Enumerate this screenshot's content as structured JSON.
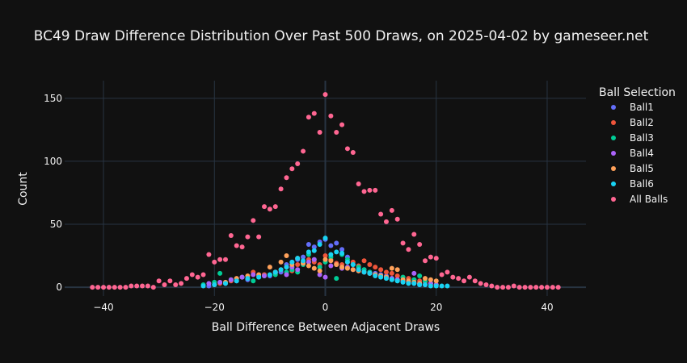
{
  "chart_data": {
    "type": "scatter",
    "title": "BC49 Draw Difference Distribution Over Past 500 Draws, on 2025-04-02 by gameseer.net",
    "xlabel": "Ball Difference Between Adjacent Draws",
    "ylabel": "Count",
    "xlim": [
      -47,
      47
    ],
    "ylim": [
      -7,
      164
    ],
    "xticks": [
      -40,
      -20,
      0,
      20,
      40
    ],
    "yticks": [
      0,
      50,
      100,
      150
    ],
    "grid": true,
    "legend": {
      "title": "Ball Selection",
      "placement": "right"
    },
    "series": [
      {
        "name": "Ball1",
        "color": "#636efa",
        "x": [
          -21,
          -18,
          -16,
          -15,
          -14,
          -12,
          -11,
          -10,
          -9,
          -8,
          -7,
          -6,
          -5,
          -4,
          -3,
          -2,
          -1,
          0,
          1,
          2,
          3,
          4,
          5,
          6,
          7,
          8,
          9,
          10,
          11,
          12,
          13,
          14,
          15,
          16,
          17
        ],
        "y": [
          1,
          3,
          5,
          8,
          6,
          9,
          10,
          9,
          11,
          12,
          18,
          20,
          22,
          24,
          34,
          32,
          36,
          38,
          33,
          35,
          30,
          24,
          18,
          16,
          14,
          12,
          11,
          10,
          9,
          7,
          6,
          5,
          4,
          3,
          2
        ]
      },
      {
        "name": "Ball2",
        "color": "#ef553b",
        "x": [
          -19,
          -17,
          -15,
          -13,
          -11,
          -9,
          -8,
          -7,
          -6,
          -5,
          -4,
          -3,
          -2,
          -1,
          0,
          1,
          2,
          3,
          4,
          5,
          6,
          7,
          8,
          9,
          10,
          11,
          12,
          13,
          14,
          15,
          16,
          17,
          18,
          19,
          20
        ],
        "y": [
          3,
          5,
          8,
          12,
          10,
          12,
          14,
          16,
          13,
          18,
          20,
          22,
          20,
          18,
          25,
          22,
          19,
          18,
          20,
          20,
          17,
          21,
          18,
          16,
          14,
          12,
          11,
          9,
          8,
          7,
          6,
          5,
          4,
          3,
          2
        ]
      },
      {
        "name": "Ball3",
        "color": "#00cc96",
        "x": [
          -22,
          -20,
          -19,
          -17,
          -15,
          -13,
          -11,
          -9,
          -7,
          -6,
          -5,
          -4,
          -3,
          -2,
          -1,
          0,
          1,
          2,
          3,
          4,
          5,
          6,
          7,
          8,
          9,
          10,
          11,
          12,
          13,
          14,
          15,
          16,
          17,
          18,
          19,
          20
        ],
        "y": [
          2,
          4,
          11,
          6,
          8,
          5,
          9,
          10,
          12,
          14,
          12,
          18,
          26,
          22,
          16,
          20,
          24,
          7,
          26,
          22,
          18,
          16,
          14,
          12,
          10,
          9,
          8,
          6,
          5,
          8,
          4,
          6,
          9,
          5,
          3,
          2
        ]
      },
      {
        "name": "Ball4",
        "color": "#ab63fa",
        "x": [
          -21,
          -19,
          -17,
          -15,
          -13,
          -11,
          -9,
          -7,
          -6,
          -5,
          -4,
          -3,
          -2,
          -1,
          0,
          1,
          2,
          3,
          4,
          5,
          6,
          7,
          8,
          9,
          10,
          11,
          12,
          13,
          14,
          15,
          16,
          17,
          18,
          19,
          20
        ],
        "y": [
          3,
          4,
          6,
          8,
          10,
          9,
          12,
          10,
          16,
          14,
          19,
          20,
          22,
          10,
          8,
          17,
          18,
          15,
          16,
          14,
          13,
          12,
          11,
          10,
          9,
          8,
          7,
          6,
          5,
          4,
          11,
          3,
          2,
          3,
          2
        ]
      },
      {
        "name": "Ball5",
        "color": "#ffa15a",
        "x": [
          -20,
          -18,
          -16,
          -14,
          -12,
          -10,
          -9,
          -8,
          -7,
          -6,
          -5,
          -4,
          -3,
          -2,
          -1,
          0,
          1,
          2,
          3,
          4,
          5,
          6,
          7,
          8,
          9,
          10,
          11,
          12,
          13,
          14,
          15,
          16,
          17,
          18,
          19,
          20
        ],
        "y": [
          2,
          4,
          7,
          9,
          10,
          16,
          12,
          20,
          25,
          18,
          23,
          19,
          17,
          15,
          13,
          22,
          21,
          18,
          16,
          15,
          14,
          13,
          12,
          11,
          10,
          9,
          8,
          15,
          14,
          6,
          5,
          4,
          3,
          7,
          6,
          5
        ]
      },
      {
        "name": "Ball6",
        "color": "#19d3f3",
        "x": [
          -22,
          -20,
          -18,
          -16,
          -14,
          -12,
          -10,
          -9,
          -8,
          -7,
          -6,
          -5,
          -4,
          -3,
          -2,
          -1,
          0,
          1,
          2,
          3,
          4,
          5,
          6,
          7,
          8,
          9,
          10,
          11,
          12,
          13,
          14,
          15,
          16,
          17,
          18,
          19,
          20,
          21,
          22
        ],
        "y": [
          1,
          2,
          3,
          5,
          7,
          8,
          10,
          12,
          14,
          16,
          20,
          23,
          21,
          28,
          29,
          34,
          39,
          26,
          28,
          27,
          20,
          18,
          14,
          12,
          11,
          9,
          8,
          7,
          6,
          5,
          4,
          3,
          3,
          2,
          2,
          1,
          1,
          1,
          1
        ]
      },
      {
        "name": "All Balls",
        "color": "#ff6692",
        "x": [
          -42,
          -41,
          -40,
          -39,
          -38,
          -37,
          -36,
          -35,
          -34,
          -33,
          -32,
          -31,
          -30,
          -29,
          -28,
          -27,
          -26,
          -25,
          -24,
          -23,
          -22,
          -21,
          -20,
          -19,
          -18,
          -17,
          -16,
          -15,
          -14,
          -13,
          -12,
          -11,
          -10,
          -9,
          -8,
          -7,
          -6,
          -5,
          -4,
          -3,
          -2,
          -1,
          0,
          1,
          2,
          3,
          4,
          5,
          6,
          7,
          8,
          9,
          10,
          11,
          12,
          13,
          14,
          15,
          16,
          17,
          18,
          19,
          20,
          21,
          22,
          23,
          24,
          25,
          26,
          27,
          28,
          29,
          30,
          31,
          32,
          33,
          34,
          35,
          36,
          37,
          38,
          39,
          40,
          41,
          42
        ],
        "y": [
          0,
          0,
          0,
          0,
          0,
          0,
          0,
          1,
          1,
          1,
          1,
          0,
          5,
          2,
          5,
          2,
          3,
          7,
          10,
          8,
          10,
          26,
          20,
          22,
          22,
          41,
          33,
          32,
          40,
          53,
          40,
          64,
          62,
          64,
          78,
          87,
          94,
          98,
          108,
          135,
          138,
          123,
          153,
          136,
          123,
          129,
          110,
          107,
          82,
          76,
          77,
          77,
          58,
          52,
          61,
          54,
          35,
          30,
          42,
          34,
          21,
          24,
          23,
          10,
          12,
          8,
          7,
          5,
          8,
          5,
          3,
          2,
          1,
          0,
          0,
          0,
          1,
          0,
          0,
          0,
          0,
          0,
          0,
          0,
          0
        ]
      }
    ]
  }
}
